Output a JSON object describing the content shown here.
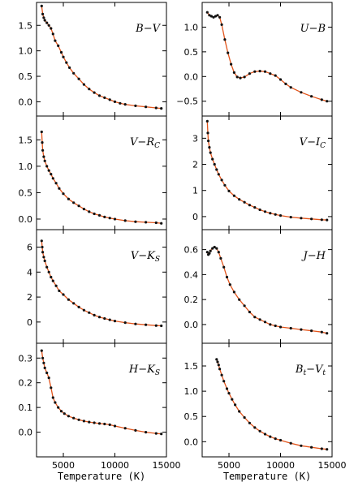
{
  "chart_data": [
    {
      "type": "line",
      "label": "B−V",
      "label_main": "B",
      "label_sub": "",
      "label_main2": "V",
      "label_sub2": "",
      "yticks": [
        0.0,
        0.5,
        1.0,
        1.5
      ],
      "ytick_labels": [
        "0.0",
        "0.5",
        "1.0",
        "1.5"
      ],
      "ylim": [
        -0.28,
        1.95
      ],
      "xlim": [
        2400,
        15000
      ],
      "x": [
        2900,
        3000,
        3100,
        3200,
        3400,
        3600,
        3800,
        4000,
        4200,
        4500,
        4800,
        5000,
        5300,
        5600,
        6000,
        6500,
        7000,
        7500,
        8000,
        8500,
        9000,
        9500,
        10000,
        10500,
        11000,
        12000,
        13000,
        14000,
        14500
      ],
      "y": [
        1.88,
        1.72,
        1.65,
        1.6,
        1.55,
        1.5,
        1.44,
        1.33,
        1.2,
        1.1,
        0.97,
        0.88,
        0.77,
        0.67,
        0.56,
        0.45,
        0.34,
        0.25,
        0.18,
        0.12,
        0.08,
        0.04,
        0.0,
        -0.03,
        -0.05,
        -0.08,
        -0.1,
        -0.12,
        -0.13
      ]
    },
    {
      "type": "line",
      "label": "U−B",
      "label_main": "U",
      "label_sub": "",
      "label_main2": "B",
      "label_sub2": "",
      "yticks": [
        -0.5,
        0.0,
        0.5,
        1.0
      ],
      "ytick_labels": [
        "−0.5",
        "0.0",
        "0.5",
        "1.0"
      ],
      "ylim": [
        -0.8,
        1.5
      ],
      "xlim": [
        2400,
        15000
      ],
      "x": [
        2900,
        3100,
        3300,
        3500,
        3700,
        3900,
        4100,
        4300,
        4600,
        4900,
        5200,
        5500,
        5800,
        6100,
        6500,
        7000,
        7500,
        8000,
        8500,
        9000,
        9500,
        10000,
        10500,
        11000,
        12000,
        13000,
        14000,
        14500
      ],
      "y": [
        1.3,
        1.24,
        1.22,
        1.2,
        1.22,
        1.24,
        1.2,
        1.05,
        0.75,
        0.48,
        0.25,
        0.08,
        -0.01,
        -0.03,
        -0.01,
        0.06,
        0.1,
        0.11,
        0.1,
        0.06,
        0.02,
        -0.06,
        -0.15,
        -0.22,
        -0.32,
        -0.4,
        -0.47,
        -0.5
      ]
    },
    {
      "type": "line",
      "label": "V−Rc",
      "label_main": "V",
      "label_sub": "",
      "label_main2": "R",
      "label_sub2": "C",
      "yticks": [
        0.0,
        0.5,
        1.0,
        1.5
      ],
      "ytick_labels": [
        "0.0",
        "0.5",
        "1.0",
        "1.5"
      ],
      "ylim": [
        -0.2,
        1.95
      ],
      "xlim": [
        2400,
        15000
      ],
      "x": [
        2900,
        2950,
        3000,
        3100,
        3200,
        3400,
        3600,
        3800,
        4000,
        4300,
        4600,
        5000,
        5500,
        6000,
        6500,
        7000,
        7500,
        8000,
        8500,
        9000,
        9500,
        10000,
        11000,
        12000,
        13000,
        14000,
        14500
      ],
      "y": [
        1.65,
        1.45,
        1.3,
        1.18,
        1.1,
        1.0,
        0.92,
        0.85,
        0.77,
        0.68,
        0.58,
        0.48,
        0.38,
        0.31,
        0.25,
        0.19,
        0.14,
        0.1,
        0.07,
        0.04,
        0.02,
        0.0,
        -0.03,
        -0.05,
        -0.06,
        -0.07,
        -0.08
      ]
    },
    {
      "type": "line",
      "label": "V−Ic",
      "label_main": "V",
      "label_sub": "",
      "label_main2": "I",
      "label_sub2": "C",
      "yticks": [
        0,
        1,
        2,
        3
      ],
      "ytick_labels": [
        "0",
        "1",
        "2",
        "3"
      ],
      "ylim": [
        -0.5,
        3.85
      ],
      "xlim": [
        2400,
        15000
      ],
      "x": [
        2900,
        2950,
        3000,
        3100,
        3200,
        3400,
        3600,
        3800,
        4000,
        4300,
        4600,
        5000,
        5500,
        6000,
        6500,
        7000,
        7500,
        8000,
        8500,
        9000,
        9500,
        10000,
        11000,
        12000,
        13000,
        14000,
        14500
      ],
      "y": [
        3.65,
        3.2,
        2.9,
        2.65,
        2.45,
        2.2,
        2.0,
        1.8,
        1.62,
        1.4,
        1.2,
        0.98,
        0.8,
        0.66,
        0.55,
        0.44,
        0.35,
        0.26,
        0.19,
        0.13,
        0.08,
        0.04,
        -0.02,
        -0.06,
        -0.09,
        -0.12,
        -0.13
      ]
    },
    {
      "type": "line",
      "label": "V−Ks",
      "label_main": "V",
      "label_sub": "",
      "label_main2": "K",
      "label_sub2": "S",
      "yticks": [
        0,
        2,
        4,
        6
      ],
      "ytick_labels": [
        "0",
        "2",
        "4",
        "6"
      ],
      "ylim": [
        -1.7,
        7.4
      ],
      "xlim": [
        2400,
        15000
      ],
      "x": [
        2900,
        2950,
        3000,
        3100,
        3200,
        3400,
        3600,
        3800,
        4000,
        4300,
        4600,
        5000,
        5500,
        6000,
        6500,
        7000,
        7500,
        8000,
        8500,
        9000,
        9500,
        10000,
        11000,
        12000,
        13000,
        14000,
        14500
      ],
      "y": [
        6.5,
        6.0,
        5.6,
        5.2,
        4.9,
        4.4,
        4.0,
        3.6,
        3.3,
        2.9,
        2.5,
        2.2,
        1.8,
        1.5,
        1.2,
        0.95,
        0.75,
        0.55,
        0.4,
        0.28,
        0.18,
        0.08,
        -0.05,
        -0.15,
        -0.22,
        -0.28,
        -0.3
      ]
    },
    {
      "type": "line",
      "label": "J−H",
      "label_main": "J",
      "label_sub": "",
      "label_main2": "H",
      "label_sub2": "",
      "yticks": [
        0.0,
        0.2,
        0.4,
        0.6
      ],
      "ytick_labels": [
        "0.0",
        "0.2",
        "0.4",
        "0.6"
      ],
      "ylim": [
        -0.15,
        0.76
      ],
      "xlim": [
        2400,
        15000
      ],
      "x": [
        2900,
        3000,
        3100,
        3200,
        3400,
        3600,
        3800,
        4000,
        4200,
        4500,
        4800,
        5100,
        5500,
        6000,
        6500,
        7000,
        7500,
        8000,
        8500,
        9000,
        9500,
        10000,
        11000,
        12000,
        13000,
        14000,
        14500
      ],
      "y": [
        0.58,
        0.56,
        0.57,
        0.59,
        0.61,
        0.62,
        0.61,
        0.58,
        0.53,
        0.46,
        0.38,
        0.32,
        0.26,
        0.2,
        0.15,
        0.1,
        0.06,
        0.04,
        0.02,
        0.0,
        -0.01,
        -0.02,
        -0.03,
        -0.04,
        -0.05,
        -0.06,
        -0.07
      ]
    },
    {
      "type": "line",
      "label": "H−Ks",
      "label_main": "H",
      "label_sub": "",
      "label_main2": "K",
      "label_sub2": "S",
      "yticks": [
        0.0,
        0.1,
        0.2,
        0.3
      ],
      "ytick_labels": [
        "0.0",
        "0.1",
        "0.2",
        "0.3"
      ],
      "ylim": [
        -0.1,
        0.36
      ],
      "xlim": [
        2400,
        15000
      ],
      "x": [
        2900,
        3000,
        3100,
        3200,
        3400,
        3600,
        3800,
        4000,
        4200,
        4500,
        4800,
        5100,
        5500,
        6000,
        6500,
        7000,
        7500,
        8000,
        8500,
        9000,
        9500,
        10000,
        11000,
        12000,
        13000,
        14000,
        14500
      ],
      "y": [
        0.33,
        0.3,
        0.28,
        0.26,
        0.24,
        0.22,
        0.18,
        0.14,
        0.12,
        0.1,
        0.085,
        0.075,
        0.065,
        0.057,
        0.05,
        0.045,
        0.041,
        0.038,
        0.035,
        0.033,
        0.03,
        0.025,
        0.016,
        0.007,
        0.0,
        -0.005,
        -0.007
      ]
    },
    {
      "type": "line",
      "label": "Bt−Vt",
      "label_main": "B",
      "label_sub": "t",
      "label_main2": "V",
      "label_sub2": "t",
      "yticks": [
        0.0,
        0.5,
        1.0,
        1.5
      ],
      "ytick_labels": [
        "0.0",
        "0.5",
        "1.0",
        "1.5"
      ],
      "ylim": [
        -0.3,
        1.95
      ],
      "xlim": [
        2400,
        15000
      ],
      "x": [
        3800,
        3900,
        4000,
        4100,
        4300,
        4500,
        4800,
        5000,
        5300,
        5600,
        6000,
        6500,
        7000,
        7500,
        8000,
        8500,
        9000,
        9500,
        10000,
        11000,
        12000,
        13000,
        14000,
        14500
      ],
      "y": [
        1.63,
        1.58,
        1.52,
        1.44,
        1.32,
        1.2,
        1.05,
        0.96,
        0.84,
        0.73,
        0.6,
        0.48,
        0.37,
        0.28,
        0.21,
        0.15,
        0.1,
        0.06,
        0.03,
        -0.03,
        -0.08,
        -0.11,
        -0.14,
        -0.15
      ]
    }
  ],
  "x_axis": {
    "label": "Temperature (K)",
    "ticks": [
      5000,
      10000,
      15000
    ],
    "tick_labels": [
      "5000",
      "10000",
      "15000"
    ]
  }
}
